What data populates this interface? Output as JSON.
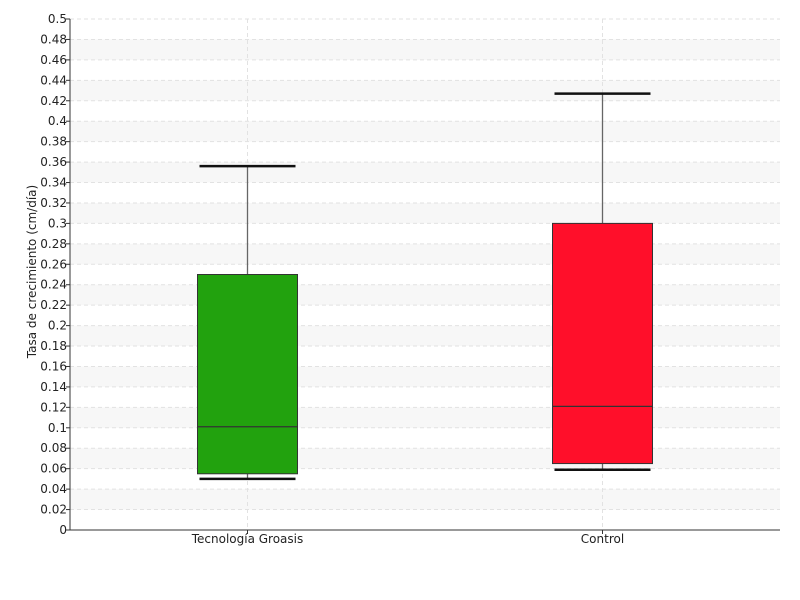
{
  "chart_data": {
    "type": "box",
    "title": "",
    "xlabel": "",
    "ylabel": "Tasa de crecimiento (cm/día)",
    "ylim": [
      0,
      0.5
    ],
    "yticks": [
      "0",
      "0.02",
      "0.04",
      "0.06",
      "0.08",
      "0.1",
      "0.12",
      "0.14",
      "0.16",
      "0.18",
      "0.2",
      "0.22",
      "0.24",
      "0.26",
      "0.28",
      "0.3",
      "0.32",
      "0.34",
      "0.36",
      "0.38",
      "0.4",
      "0.42",
      "0.44",
      "0.46",
      "0.48",
      "0.5"
    ],
    "grid": true,
    "categories": [
      "Tecnología Groasis",
      "Control"
    ],
    "boxes": [
      {
        "category": "Tecnología Groasis",
        "min": 0.05,
        "q1": 0.055,
        "median": 0.101,
        "q3": 0.25,
        "max": 0.356,
        "color": "#22a20e"
      },
      {
        "category": "Control",
        "min": 0.059,
        "q1": 0.065,
        "median": 0.121,
        "q3": 0.3,
        "max": 0.427,
        "color": "#ff0f2a"
      }
    ]
  }
}
